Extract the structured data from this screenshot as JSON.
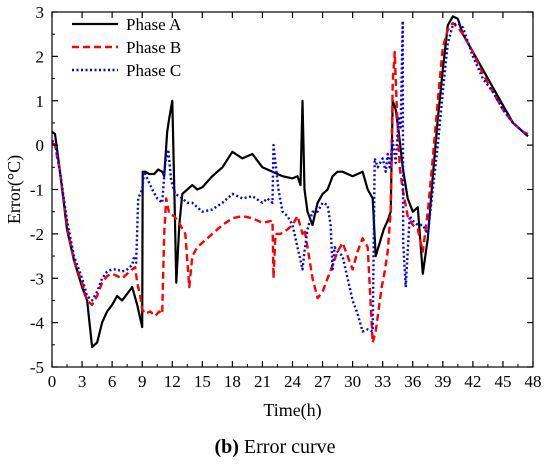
{
  "caption": {
    "label": "(b)",
    "text": "Error curve"
  },
  "chart_data": {
    "type": "line",
    "xlabel": "Time(h)",
    "ylabel": "Error(°C)",
    "xlim": [
      0,
      48
    ],
    "ylim": [
      -5,
      3
    ],
    "xticks": [
      0,
      3,
      6,
      9,
      12,
      15,
      18,
      21,
      24,
      27,
      30,
      33,
      36,
      39,
      42,
      45,
      48
    ],
    "yticks": [
      -5,
      -4,
      -3,
      -2,
      -1,
      0,
      1,
      2,
      3
    ],
    "grid": false,
    "legend_position": "top-left",
    "series": [
      {
        "name": "Phase A",
        "color": "#000000",
        "style": "solid",
        "x": [
          0,
          0.3,
          0.8,
          1.5,
          2.2,
          3,
          3.5,
          4,
          4.5,
          5,
          5.5,
          6,
          6.5,
          7,
          7.5,
          8,
          8.5,
          9,
          9.05,
          9.3,
          9.7,
          10.2,
          10.6,
          11,
          11.2,
          11.5,
          11.7,
          12,
          12.2,
          12.4,
          12.7,
          13,
          13.5,
          14,
          14.5,
          15,
          16,
          17,
          18,
          19,
          20,
          21,
          22,
          23,
          24,
          24.5,
          24.8,
          25,
          25.2,
          25.5,
          26,
          26.5,
          27,
          27.5,
          28,
          28.5,
          29,
          30,
          31,
          31.5,
          32,
          32.3,
          32.7,
          33.1,
          33.5,
          33.8,
          34,
          34.3,
          34.6,
          35,
          35.5,
          36,
          36.5,
          37,
          37.5,
          38,
          38.5,
          39,
          39.5,
          40,
          40.5,
          41,
          42,
          43,
          44,
          45,
          46,
          47,
          47.5
        ],
        "y": [
          0.3,
          0.25,
          -0.6,
          -1.9,
          -2.6,
          -3.2,
          -3.5,
          -4.55,
          -4.45,
          -4.0,
          -3.75,
          -3.6,
          -3.4,
          -3.5,
          -3.35,
          -3.2,
          -3.6,
          -4.1,
          -0.6,
          -0.6,
          -0.65,
          -0.65,
          -0.55,
          -0.6,
          -0.7,
          0.3,
          0.6,
          1.0,
          -1.0,
          -3.1,
          -1.8,
          -1.1,
          -1.0,
          -0.9,
          -1.0,
          -0.95,
          -0.7,
          -0.5,
          -0.15,
          -0.3,
          -0.2,
          -0.5,
          -0.6,
          -0.7,
          -0.75,
          -0.7,
          -0.9,
          1.0,
          -1.0,
          -1.5,
          -1.8,
          -1.3,
          -1.1,
          -1.0,
          -0.7,
          -0.6,
          -0.6,
          -0.7,
          -0.6,
          -1.0,
          -1.2,
          -2.5,
          -2.2,
          -1.9,
          -1.7,
          -1.5,
          1.0,
          0.8,
          0.3,
          -0.5,
          -1.2,
          -1.5,
          -1.4,
          -2.9,
          -2.1,
          -0.7,
          0.6,
          1.7,
          2.7,
          2.9,
          2.85,
          2.5,
          2.1,
          1.7,
          1.3,
          0.9,
          0.5,
          0.3,
          0.2
        ]
      },
      {
        "name": "Phase B",
        "color": "#ff0000",
        "style": "dashed",
        "x": [
          0,
          0.3,
          0.8,
          1.5,
          2.2,
          3,
          3.5,
          4,
          4.5,
          5,
          5.5,
          6,
          6.5,
          7,
          7.5,
          8,
          8.3,
          8.5,
          8.8,
          9,
          9.3,
          9.8,
          10.3,
          10.7,
          11,
          11.2,
          11.4,
          11.7,
          12.2,
          12.8,
          13.3,
          13.7,
          14,
          14.5,
          15,
          16,
          17,
          18,
          19,
          20,
          21,
          22,
          22.1,
          22.3,
          22.8,
          23.5,
          24,
          24.5,
          25,
          25.2,
          25.5,
          26,
          26.5,
          27,
          27.5,
          28,
          28.5,
          29,
          29.5,
          30,
          30.5,
          31,
          31.5,
          32,
          32.3,
          32.6,
          32.9,
          33.2,
          33.5,
          33.8,
          34,
          34.2,
          34.4,
          34.7,
          35,
          35.5,
          36,
          36.5,
          37,
          37.5,
          38,
          38.5,
          39,
          39.5,
          40,
          40.5,
          41,
          42,
          43,
          44,
          45,
          46,
          47,
          47.5
        ],
        "y": [
          0.05,
          0.0,
          -0.6,
          -1.8,
          -2.6,
          -3.1,
          -3.5,
          -3.6,
          -3.4,
          -3.1,
          -2.95,
          -2.9,
          -2.95,
          -3.0,
          -2.9,
          -2.8,
          -2.75,
          -3.1,
          -3.4,
          -3.7,
          -3.8,
          -3.75,
          -3.85,
          -3.75,
          -3.8,
          -2.0,
          -1.2,
          -1.55,
          -1.6,
          -1.8,
          -2.0,
          -3.2,
          -2.5,
          -2.3,
          -2.2,
          -2.0,
          -1.8,
          -1.65,
          -1.6,
          -1.65,
          -1.75,
          -1.7,
          -3.0,
          -2.0,
          -2.0,
          -1.9,
          -1.8,
          -1.6,
          -2.0,
          -1.9,
          -2.3,
          -3.0,
          -3.45,
          -3.3,
          -3.0,
          -2.7,
          -2.4,
          -2.2,
          -2.5,
          -2.8,
          -2.4,
          -2.1,
          -2.3,
          -4.45,
          -4.2,
          -3.7,
          -3.2,
          -2.85,
          -2.4,
          -1.5,
          1.4,
          2.1,
          0.9,
          -0.5,
          -1.0,
          -1.6,
          -1.8,
          -1.9,
          -2.4,
          -1.5,
          -0.3,
          1.0,
          2.2,
          2.6,
          2.75,
          2.65,
          2.5,
          2.1,
          1.6,
          1.2,
          0.8,
          0.5,
          0.3,
          0.25
        ]
      },
      {
        "name": "Phase C",
        "color": "#0000ff",
        "style": "dotted",
        "x": [
          0,
          0.3,
          0.8,
          1.5,
          2.2,
          3,
          3.5,
          4,
          4.5,
          5,
          5.5,
          6,
          6.5,
          7,
          7.5,
          8,
          8.2,
          8.4,
          8.6,
          9,
          9.2,
          9.5,
          10,
          10.5,
          11,
          11.3,
          11.6,
          11.9,
          12.3,
          13,
          13.5,
          14,
          15,
          16,
          17,
          18,
          19,
          20,
          21,
          21.5,
          22,
          22.1,
          22.3,
          22.6,
          23,
          23.5,
          24,
          24.5,
          24.8,
          25,
          25.2,
          25.5,
          26,
          26.5,
          27,
          27.5,
          27.8,
          28,
          28.2,
          28.5,
          29,
          29.5,
          30,
          30.5,
          31,
          31.5,
          32,
          32.2,
          32.5,
          33,
          33.3,
          33.5,
          33.7,
          34,
          34.3,
          34.6,
          34.8,
          35,
          35.05,
          35.3,
          35.7,
          36,
          36.5,
          37,
          37.5,
          38,
          38.5,
          39,
          39.5,
          40,
          40.5,
          41,
          42,
          43,
          44,
          45,
          46,
          47,
          47.5
        ],
        "y": [
          0.1,
          0.05,
          -0.6,
          -1.7,
          -2.5,
          -3.0,
          -3.4,
          -3.5,
          -3.3,
          -3.0,
          -2.85,
          -2.8,
          -2.8,
          -2.85,
          -2.8,
          -2.7,
          -2.5,
          -2.65,
          -1.2,
          -1.0,
          -0.6,
          -0.75,
          -1.0,
          -1.2,
          -1.3,
          -0.4,
          -0.1,
          -0.8,
          -1.1,
          -1.2,
          -1.3,
          -1.3,
          -1.5,
          -1.45,
          -1.3,
          -1.1,
          -1.2,
          -1.15,
          -1.3,
          -1.2,
          -1.3,
          0.0,
          -0.4,
          -1.0,
          -1.5,
          -1.6,
          -1.8,
          -2.3,
          -2.6,
          -2.8,
          -2.4,
          -1.9,
          -1.5,
          -1.5,
          -1.3,
          -1.35,
          -1.8,
          -2.8,
          -2.3,
          -2.4,
          -2.5,
          -3.0,
          -3.5,
          -3.8,
          -4.2,
          -4.15,
          -4.2,
          -0.3,
          -0.5,
          -0.3,
          -0.6,
          -0.2,
          -0.5,
          0.1,
          -0.4,
          0.6,
          0.4,
          2.8,
          -2.2,
          -3.2,
          -1.6,
          -1.7,
          -1.8,
          -1.8,
          -2.0,
          -1.0,
          0.0,
          1.2,
          2.3,
          2.7,
          2.75,
          2.65,
          2.0,
          1.5,
          1.2,
          0.8,
          0.5,
          0.3,
          0.2
        ]
      }
    ]
  }
}
